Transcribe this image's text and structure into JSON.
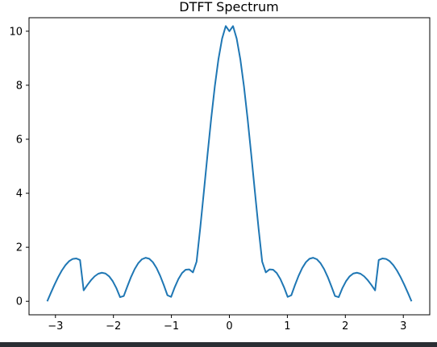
{
  "colors": {
    "line": "#1f77b4",
    "axes": "#000000",
    "background": "#ffffff",
    "bottom_bar": "#2a2e33"
  },
  "chart_data": {
    "type": "line",
    "title": "DTFT Spectrum",
    "xlabel": "",
    "ylabel": "",
    "xlim": [
      -3.4558,
      3.4558
    ],
    "ylim": [
      -0.5,
      10.5
    ],
    "grid": false,
    "legend": "none",
    "xticks": [
      -3,
      -2,
      -1,
      0,
      1,
      2,
      3
    ],
    "xtick_labels": [
      "−3",
      "−2",
      "−1",
      "0",
      "1",
      "2",
      "3"
    ],
    "yticks": [
      0,
      2,
      4,
      6,
      8,
      10
    ],
    "ytick_labels": [
      "0",
      "2",
      "4",
      "6",
      "8",
      "10"
    ],
    "series": [
      {
        "name": "",
        "x": [
          -3.1416,
          -3.0788,
          -3.0159,
          -2.9531,
          -2.8903,
          -2.8274,
          -2.7646,
          -2.7018,
          -2.6389,
          -2.5761,
          -2.5133,
          -2.4504,
          -2.3876,
          -2.3248,
          -2.2619,
          -2.1991,
          -2.1363,
          -2.0735,
          -2.0106,
          -1.9478,
          -1.885,
          -1.8221,
          -1.7593,
          -1.6965,
          -1.6336,
          -1.5708,
          -1.508,
          -1.4451,
          -1.3823,
          -1.3195,
          -1.2566,
          -1.1938,
          -1.131,
          -1.0681,
          -1.0053,
          -0.9425,
          -0.8796,
          -0.8168,
          -0.754,
          -0.6912,
          -0.6283,
          -0.5655,
          -0.5027,
          -0.4398,
          -0.377,
          -0.3142,
          -0.2513,
          -0.1885,
          -0.1257,
          -0.0628,
          0,
          0.0628,
          0.1257,
          0.1885,
          0.2513,
          0.3142,
          0.377,
          0.4398,
          0.5027,
          0.5655,
          0.6283,
          0.6912,
          0.754,
          0.8168,
          0.8796,
          0.9425,
          1.0053,
          1.0681,
          1.131,
          1.1938,
          1.2566,
          1.3195,
          1.3823,
          1.4451,
          1.508,
          1.5708,
          1.6336,
          1.6965,
          1.7593,
          1.8221,
          1.885,
          1.9478,
          2.0106,
          2.0735,
          2.1363,
          2.1991,
          2.2619,
          2.3248,
          2.3876,
          2.4504,
          2.5133,
          2.5761,
          2.6389,
          2.7018,
          2.7646,
          2.8274,
          2.8903,
          2.9531,
          3.0159,
          3.0788,
          3.1416
        ],
        "y": [
          0,
          0.3141,
          0.6164,
          0.8951,
          1.1395,
          1.3393,
          1.4853,
          1.5695,
          1.5856,
          1.5292,
          0.4051,
          0.6011,
          0.779,
          0.9234,
          1.0204,
          1.0582,
          1.0277,
          0.9226,
          0.7402,
          0.4818,
          0.1535,
          0.1944,
          0.5556,
          0.9005,
          1.1916,
          1.4142,
          1.5573,
          1.6125,
          1.5758,
          1.4475,
          1.2333,
          0.9441,
          0.5987,
          0.2231,
          0.1626,
          0.5197,
          0.8225,
          1.0457,
          1.1691,
          1.1794,
          1.0711,
          1.4708,
          2.7138,
          4.061,
          5.4346,
          6.7579,
          7.9579,
          8.9673,
          9.7272,
          10.1902,
          10,
          10.1902,
          9.7272,
          8.9673,
          7.9579,
          6.7579,
          5.4346,
          4.061,
          2.7138,
          1.4708,
          1.0711,
          1.1794,
          1.1691,
          1.0457,
          0.8225,
          0.5197,
          0.1626,
          0.2231,
          0.5987,
          0.9441,
          1.2333,
          1.4475,
          1.5758,
          1.6125,
          1.5573,
          1.4142,
          1.1916,
          0.9005,
          0.5556,
          0.1944,
          0.1535,
          0.4818,
          0.7402,
          0.9226,
          1.0277,
          1.0582,
          1.0204,
          0.9234,
          0.779,
          0.6011,
          0.4051,
          1.5292,
          1.5856,
          1.5695,
          1.4853,
          1.3393,
          1.1395,
          0.8951,
          0.6164,
          0.3141,
          0
        ]
      }
    ]
  }
}
